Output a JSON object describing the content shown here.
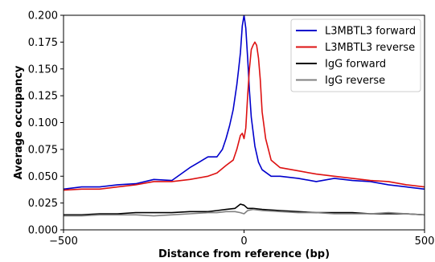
{
  "chart_data": {
    "type": "line",
    "xlabel": "Distance from reference (bp)",
    "ylabel": "Average occupancy",
    "xlim": [
      -500,
      500
    ],
    "ylim": [
      0,
      0.2
    ],
    "x_ticks": [
      -500,
      0,
      500
    ],
    "x_tick_labels": [
      "−500",
      "0",
      "500"
    ],
    "y_ticks": [
      0,
      0.025,
      0.05,
      0.075,
      0.1,
      0.125,
      0.15,
      0.175,
      0.2
    ],
    "y_tick_labels": [
      "0.000",
      "0.025",
      "0.050",
      "0.075",
      "0.100",
      "0.125",
      "0.150",
      "0.175",
      "0.200"
    ],
    "grid": false,
    "legend_position": "top-right",
    "series": [
      {
        "name": "L3MBTL3 forward",
        "color": "#0000cc",
        "x": [
          -500,
          -450,
          -400,
          -350,
          -300,
          -250,
          -200,
          -175,
          -150,
          -125,
          -100,
          -75,
          -60,
          -50,
          -40,
          -30,
          -20,
          -15,
          -10,
          -5,
          0,
          5,
          10,
          15,
          20,
          30,
          40,
          50,
          75,
          100,
          150,
          200,
          250,
          300,
          350,
          400,
          450,
          500
        ],
        "y": [
          0.038,
          0.04,
          0.04,
          0.042,
          0.043,
          0.047,
          0.046,
          0.052,
          0.058,
          0.063,
          0.068,
          0.068,
          0.075,
          0.085,
          0.097,
          0.112,
          0.135,
          0.15,
          0.165,
          0.19,
          0.2,
          0.188,
          0.16,
          0.13,
          0.105,
          0.078,
          0.063,
          0.056,
          0.05,
          0.05,
          0.048,
          0.045,
          0.048,
          0.046,
          0.045,
          0.042,
          0.04,
          0.038
        ]
      },
      {
        "name": "L3MBTL3 reverse",
        "color": "#dd1111",
        "x": [
          -500,
          -450,
          -400,
          -350,
          -300,
          -250,
          -200,
          -150,
          -100,
          -75,
          -50,
          -30,
          -20,
          -10,
          -5,
          0,
          5,
          10,
          15,
          20,
          25,
          30,
          35,
          40,
          45,
          50,
          60,
          75,
          100,
          150,
          200,
          250,
          300,
          350,
          400,
          450,
          500
        ],
        "y": [
          0.037,
          0.038,
          0.038,
          0.04,
          0.042,
          0.045,
          0.045,
          0.047,
          0.05,
          0.053,
          0.06,
          0.065,
          0.075,
          0.088,
          0.09,
          0.085,
          0.095,
          0.125,
          0.15,
          0.168,
          0.172,
          0.175,
          0.172,
          0.16,
          0.14,
          0.11,
          0.085,
          0.065,
          0.058,
          0.055,
          0.052,
          0.05,
          0.048,
          0.046,
          0.045,
          0.042,
          0.04
        ]
      },
      {
        "name": "IgG forward",
        "color": "#000000",
        "x": [
          -500,
          -450,
          -400,
          -350,
          -300,
          -250,
          -200,
          -150,
          -100,
          -75,
          -50,
          -25,
          -10,
          0,
          10,
          25,
          50,
          100,
          150,
          200,
          250,
          300,
          350,
          400,
          450,
          500
        ],
        "y": [
          0.014,
          0.014,
          0.015,
          0.015,
          0.016,
          0.016,
          0.016,
          0.017,
          0.017,
          0.018,
          0.019,
          0.02,
          0.024,
          0.023,
          0.02,
          0.02,
          0.019,
          0.018,
          0.017,
          0.016,
          0.016,
          0.016,
          0.015,
          0.015,
          0.015,
          0.014
        ]
      },
      {
        "name": "IgG reverse",
        "color": "#808080",
        "x": [
          -500,
          -450,
          -400,
          -350,
          -300,
          -250,
          -200,
          -150,
          -100,
          -75,
          -50,
          -25,
          -10,
          0,
          10,
          25,
          50,
          100,
          150,
          200,
          250,
          300,
          350,
          400,
          450,
          500
        ],
        "y": [
          0.013,
          0.013,
          0.014,
          0.014,
          0.014,
          0.013,
          0.014,
          0.015,
          0.016,
          0.016,
          0.017,
          0.017,
          0.016,
          0.015,
          0.018,
          0.019,
          0.018,
          0.017,
          0.016,
          0.016,
          0.015,
          0.015,
          0.015,
          0.016,
          0.015,
          0.014
        ]
      }
    ]
  }
}
